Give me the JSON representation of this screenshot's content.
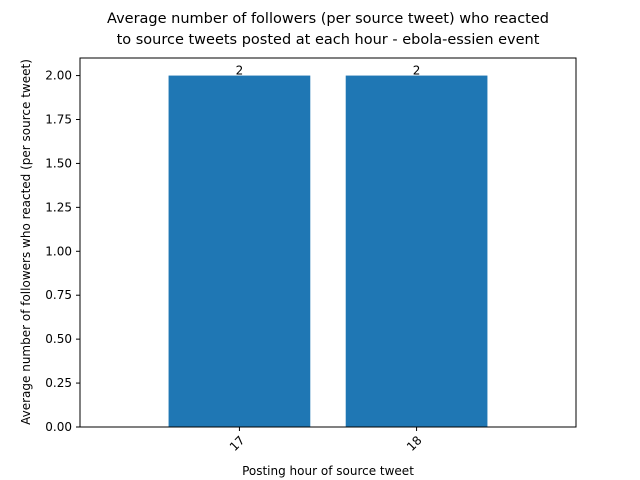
{
  "chart_data": {
    "type": "bar",
    "title_lines": [
      "Average number of followers (per source tweet) who reacted",
      "to source tweets posted at each hour - ebola-essien event"
    ],
    "xlabel": "Posting hour of source tweet",
    "ylabel": "Average number of followers who reacted (per source tweet)",
    "categories": [
      "17",
      "18"
    ],
    "values": [
      2,
      2
    ],
    "data_labels": [
      "2",
      "2"
    ],
    "ylim": [
      0,
      2.1
    ],
    "yticks": [
      0.0,
      0.25,
      0.5,
      0.75,
      1.0,
      1.25,
      1.5,
      1.75,
      2.0
    ],
    "ytick_labels": [
      "0.00",
      "0.25",
      "0.50",
      "0.75",
      "1.00",
      "1.25",
      "1.50",
      "1.75",
      "2.00"
    ],
    "xtick_rotation": "45 degrees",
    "grid": false,
    "legend": "none",
    "bar_color": "#1f77b4"
  }
}
